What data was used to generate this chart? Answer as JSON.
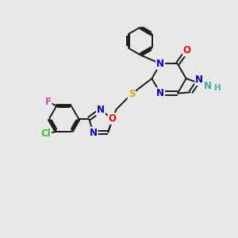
{
  "bg_color": "#e8e8e8",
  "bond_color": "#1a1a1a",
  "atom_colors": {
    "N": "#0000cc",
    "O": "#ff0000",
    "S": "#ccaa00",
    "Cl": "#33bb33",
    "F": "#cc44cc",
    "NH": "#44aaaa",
    "C": "#1a1a1a"
  },
  "font_size": 8.5,
  "lw": 1.4
}
